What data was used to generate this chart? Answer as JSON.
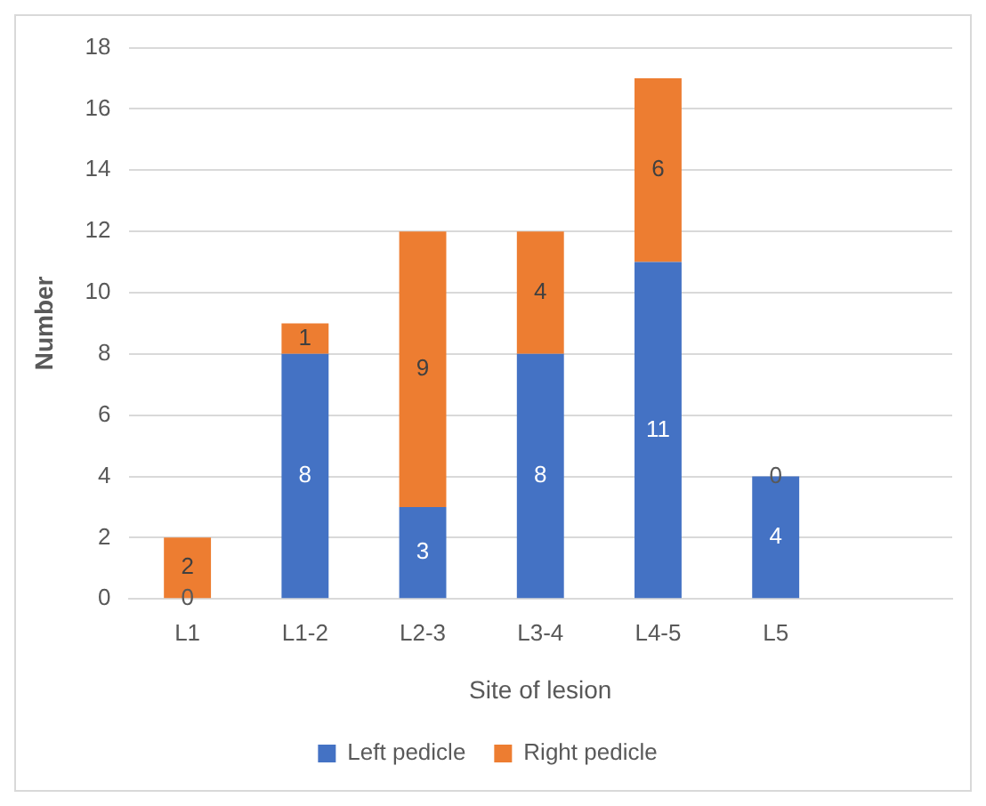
{
  "chart_data": {
    "type": "bar",
    "xlabel": "Site of lesion",
    "ylabel": "Number",
    "categories": [
      "L1",
      "L1-2",
      "L2-3",
      "L3-4",
      "L4-5",
      "L5",
      null
    ],
    "series": [
      {
        "name": "Left pedicle",
        "color": "#4472c4",
        "values": [
          0,
          8,
          3,
          8,
          11,
          4,
          null
        ]
      },
      {
        "name": "Right pedicle",
        "color": "#ed7d31",
        "values": [
          2,
          1,
          9,
          4,
          6,
          0,
          null
        ]
      }
    ],
    "stacked": true,
    "ylim": [
      0,
      18
    ],
    "yticks": [
      0,
      2,
      4,
      6,
      8,
      10,
      12,
      14,
      16,
      18
    ],
    "grid": "y",
    "legend": "bottom",
    "data_labels": true
  }
}
